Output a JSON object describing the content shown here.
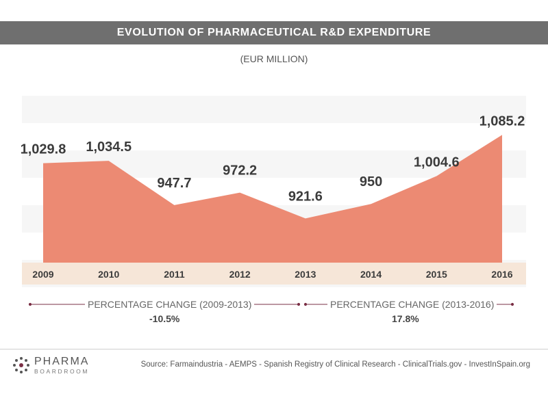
{
  "header": {
    "title": "EVOLUTION OF PHARMACEUTICAL R&D EXPENDITURE",
    "subtitle": "(EUR MILLION)"
  },
  "chart_data": {
    "type": "area",
    "title": "EVOLUTION OF PHARMACEUTICAL R&D EXPENDITURE",
    "subtitle": "(EUR MILLION)",
    "categories": [
      "2009",
      "2010",
      "2011",
      "2012",
      "2013",
      "2014",
      "2015",
      "2016"
    ],
    "values": [
      1029.8,
      1034.5,
      947.7,
      972.2,
      921.6,
      950,
      1004.6,
      1085.2
    ],
    "data_labels": [
      "1,029.8",
      "1,034.5",
      "947.7",
      "972.2",
      "921.6",
      "950",
      "1,004.6",
      "1,085.2"
    ],
    "colors": {
      "area": "#ec8a73",
      "axis_band": "#f6e6d8",
      "stripe": "#f6f6f6",
      "accent": "#7a2f45"
    },
    "grid": false,
    "legend": "none"
  },
  "percentage_change": [
    {
      "label": "PERCENTAGE CHANGE (2009-2013)",
      "value": "-10.5%"
    },
    {
      "label": "PERCENTAGE CHANGE (2013-2016)",
      "value": "17.8%"
    }
  ],
  "footer": {
    "logo_main": "PHARMA",
    "logo_sub": "BOARDROOM",
    "logo_icon": "dotted-circle-icon",
    "source": "Source:  Farmaindustria - AEMPS - Spanish Registry of Clinical Research - ClinicalTrials.gov - InvestInSpain.org"
  }
}
